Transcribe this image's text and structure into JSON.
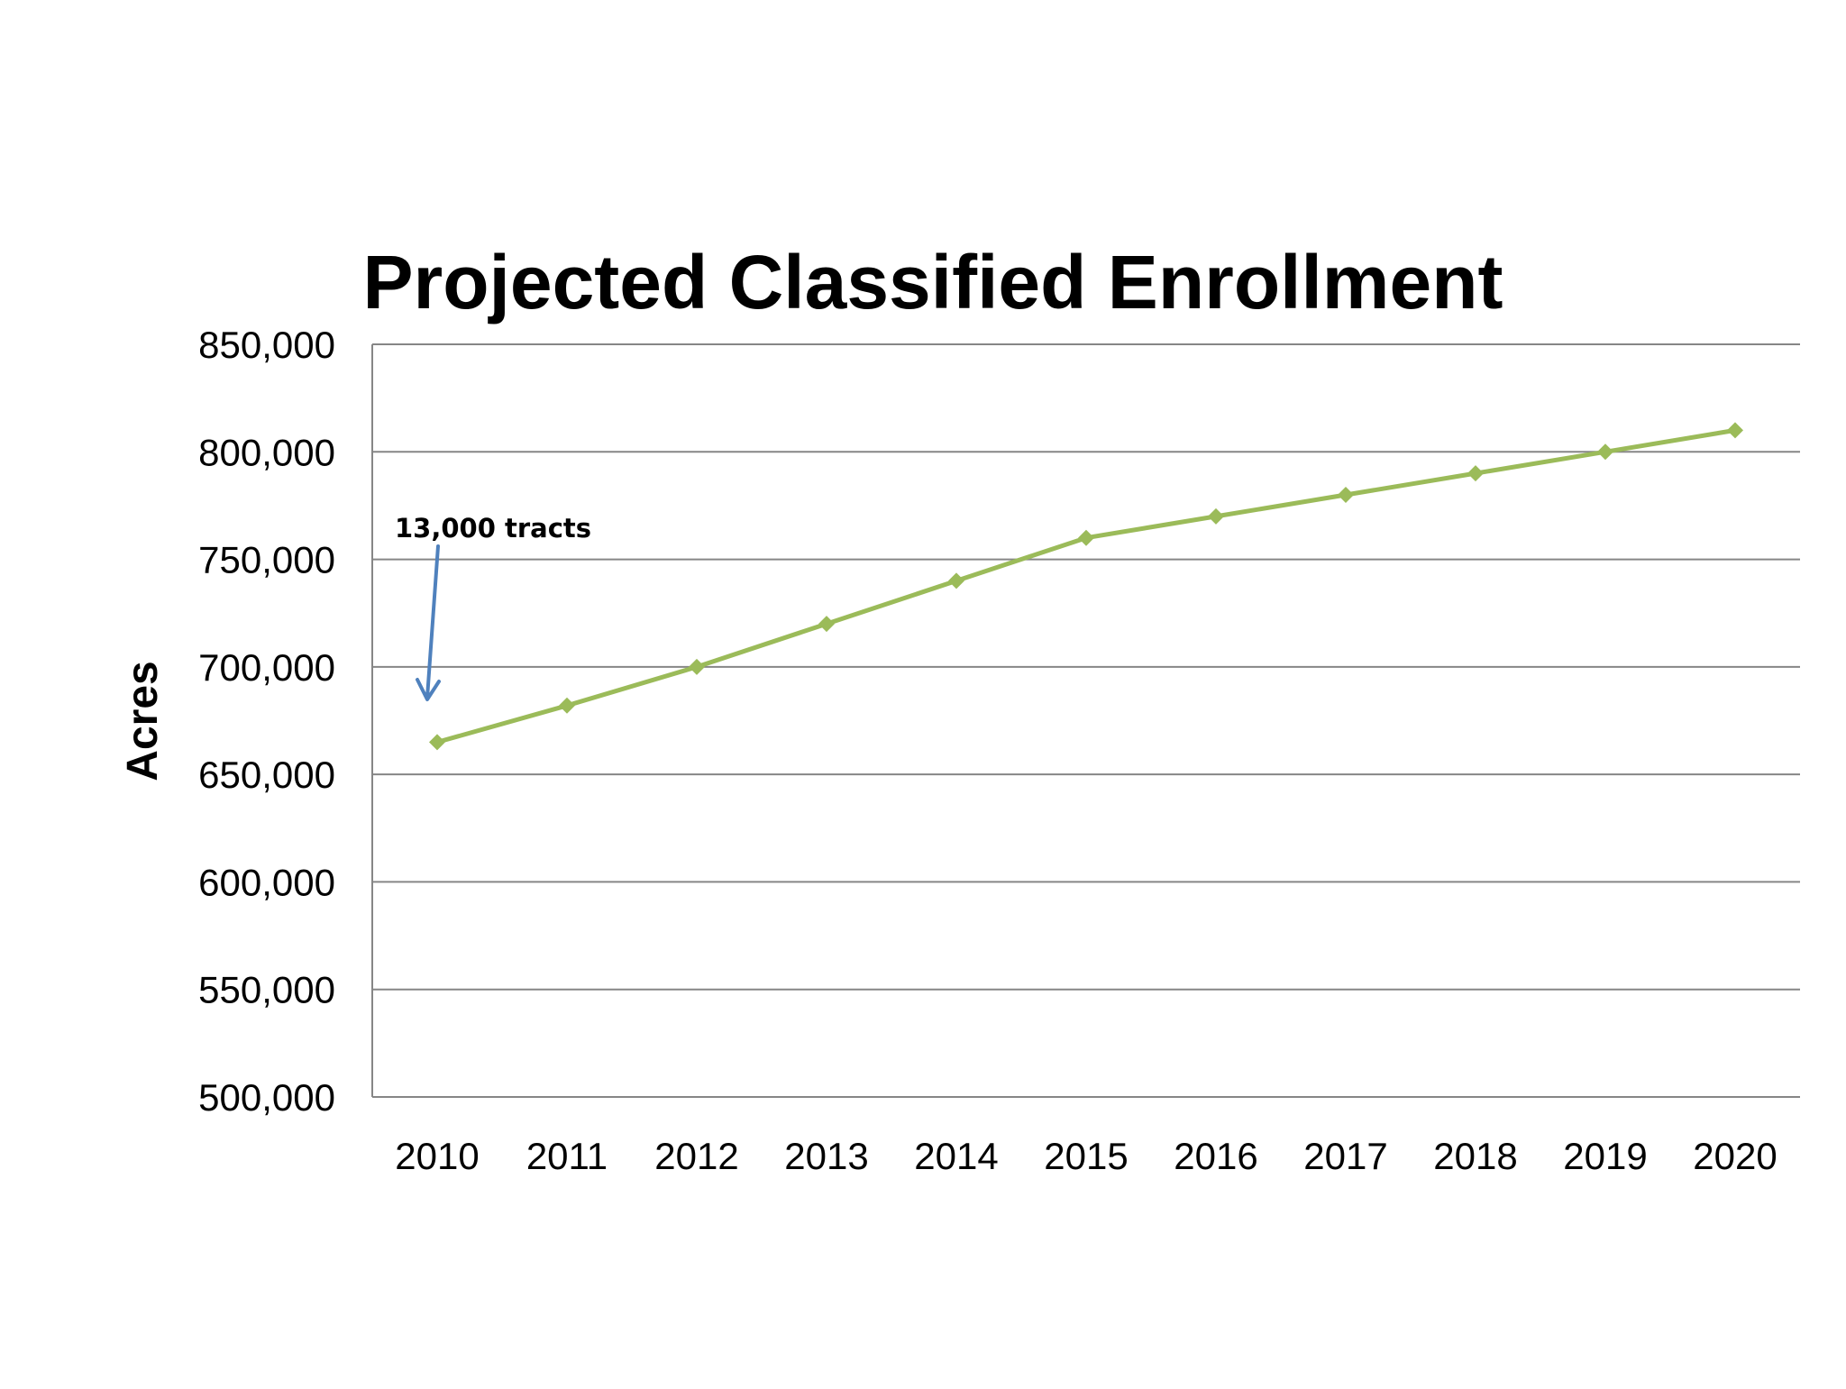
{
  "chart_data": {
    "type": "line",
    "title": "Projected Classified Enrollment",
    "xlabel": "",
    "ylabel": "Acres",
    "x": [
      "2010",
      "2011",
      "2012",
      "2013",
      "2014",
      "2015",
      "2016",
      "2017",
      "2018",
      "2019",
      "2020"
    ],
    "series": [
      {
        "values": [
          665000,
          682000,
          700000,
          720000,
          740000,
          760000,
          770000,
          780000,
          790000,
          800000,
          810000
        ]
      }
    ],
    "ylim": [
      500000,
      850000
    ],
    "yticks": [
      500000,
      550000,
      600000,
      650000,
      700000,
      750000,
      800000,
      850000
    ],
    "ytick_labels": [
      "500,000",
      "550,000",
      "600,000",
      "650,000",
      "700,000",
      "750,000",
      "800,000",
      "850,000"
    ],
    "grid": true,
    "legend": "none",
    "line_color": "#9BBB59",
    "grid_color": "#868686",
    "annotation": {
      "text": "13,000 tracts",
      "arrow_color": "#4F81BD"
    }
  }
}
